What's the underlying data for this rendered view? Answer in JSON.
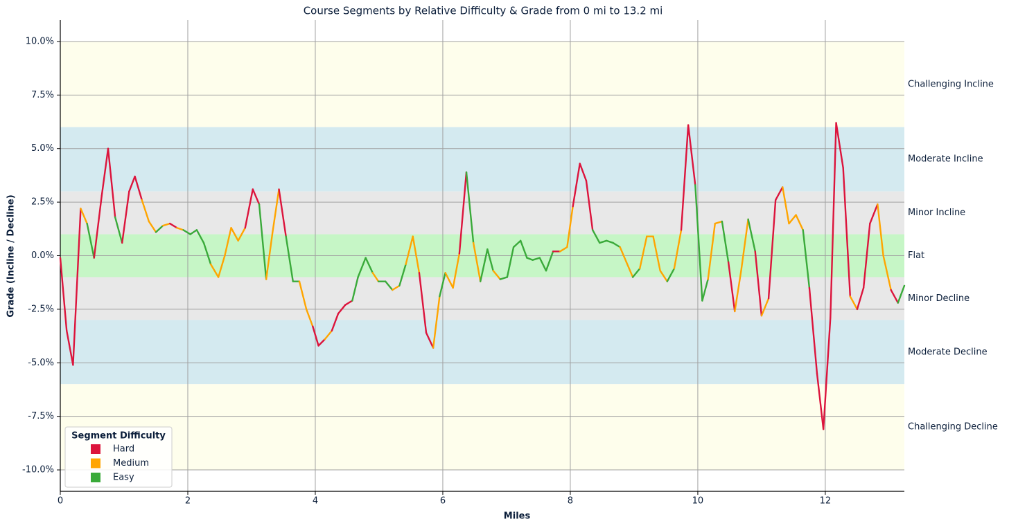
{
  "chart_data": {
    "type": "segmented_line",
    "title": "Course Segments by Relative Difficulty & Grade from 0 mi to 13.2 mi",
    "x_label": "Miles",
    "y_label": "Grade (Incline / Decline)",
    "xlim": [
      0,
      13.24
    ],
    "ylim": [
      -11,
      11
    ],
    "xticks": [
      0,
      2,
      4,
      6,
      8,
      10,
      12
    ],
    "yticks": [
      {
        "value": 10,
        "label": "10.0%"
      },
      {
        "value": 7.5,
        "label": "7.5%"
      },
      {
        "value": 5,
        "label": "5.0%"
      },
      {
        "value": 2.5,
        "label": "2.5%"
      },
      {
        "value": 0,
        "label": "0.0%"
      },
      {
        "value": -2.5,
        "label": "-2.5%"
      },
      {
        "value": -5,
        "label": "-5.0%"
      },
      {
        "value": -7.5,
        "label": "-7.5%"
      },
      {
        "value": -10,
        "label": "-10.0%"
      }
    ],
    "grid": true,
    "bands": [
      {
        "label": "Challenging Incline",
        "range": [
          6,
          10
        ],
        "color": "#fefeec"
      },
      {
        "label": "Moderate Incline",
        "range": [
          3,
          6
        ],
        "color": "#d4eaf0"
      },
      {
        "label": "Minor Incline",
        "range": [
          1,
          3
        ],
        "color": "#e8e8e8"
      },
      {
        "label": "Flat",
        "range": [
          -1,
          1
        ],
        "color": "#c6f6c6"
      },
      {
        "label": "Minor Decline",
        "range": [
          -3,
          -1
        ],
        "color": "#e8e8e8"
      },
      {
        "label": "Moderate Decline",
        "range": [
          -6,
          -3
        ],
        "color": "#d4eaf0"
      },
      {
        "label": "Challenging Decline",
        "range": [
          -10,
          -6
        ],
        "color": "#fefeec"
      }
    ],
    "legend_title": "Segment Difficulty",
    "legend_position": "lower left",
    "series": [
      {
        "name": "Hard",
        "color": "#dc143c"
      },
      {
        "name": "Medium",
        "color": "#ffa500"
      },
      {
        "name": "Easy",
        "color": "#3aaa3a"
      }
    ],
    "x": [
      0,
      0.1,
      0.2,
      0.32,
      0.42,
      0.53,
      0.65,
      0.75,
      0.86,
      0.97,
      1.08,
      1.17,
      1.28,
      1.39,
      1.5,
      1.61,
      1.72,
      1.83,
      1.93,
      2.04,
      2.14,
      2.25,
      2.36,
      2.48,
      2.58,
      2.68,
      2.79,
      2.9,
      3.02,
      3.12,
      3.23,
      3.33,
      3.43,
      3.54,
      3.65,
      3.75,
      3.86,
      3.96,
      4.05,
      4.15,
      4.26,
      4.36,
      4.47,
      4.58,
      4.67,
      4.79,
      4.9,
      4.99,
      5.1,
      5.21,
      5.32,
      5.42,
      5.53,
      5.63,
      5.74,
      5.85,
      5.95,
      6.04,
      6.16,
      6.26,
      6.37,
      6.48,
      6.59,
      6.7,
      6.79,
      6.9,
      7.01,
      7.11,
      7.22,
      7.32,
      7.41,
      7.52,
      7.62,
      7.73,
      7.84,
      7.95,
      8.04,
      8.15,
      8.25,
      8.35,
      8.46,
      8.57,
      8.67,
      8.78,
      8.88,
      8.98,
      9.09,
      9.2,
      9.3,
      9.41,
      9.52,
      9.63,
      9.74,
      9.85,
      9.96,
      10.07,
      10.16,
      10.27,
      10.38,
      10.48,
      10.58,
      10.68,
      10.79,
      10.9,
      11.0,
      11.11,
      11.22,
      11.33,
      11.43,
      11.54,
      11.65,
      11.75,
      11.87,
      11.97,
      12.08,
      12.17,
      12.28,
      12.39,
      12.5,
      12.6,
      12.7,
      12.82,
      12.91,
      13.03,
      13.14,
      13.24
    ],
    "values": [
      -0.1,
      -3.5,
      -5.1,
      2.2,
      1.5,
      -0.1,
      2.8,
      5.0,
      1.8,
      0.6,
      3.0,
      3.7,
      2.6,
      1.6,
      1.1,
      1.4,
      1.5,
      1.3,
      1.2,
      1.0,
      1.2,
      0.6,
      -0.4,
      -1.0,
      0.0,
      1.3,
      0.7,
      1.3,
      3.1,
      2.4,
      -1.1,
      1.1,
      3.1,
      0.9,
      -1.2,
      -1.2,
      -2.5,
      -3.3,
      -4.2,
      -3.9,
      -3.5,
      -2.7,
      -2.3,
      -2.1,
      -1.0,
      -0.1,
      -0.8,
      -1.2,
      -1.2,
      -1.6,
      -1.4,
      -0.4,
      0.9,
      -0.8,
      -3.6,
      -4.3,
      -1.9,
      -0.8,
      -1.5,
      0.1,
      3.9,
      0.6,
      -1.2,
      0.3,
      -0.7,
      -1.1,
      -1.0,
      0.4,
      0.7,
      -0.1,
      -0.2,
      -0.1,
      -0.7,
      0.2,
      0.2,
      0.4,
      2.3,
      4.3,
      3.5,
      1.2,
      0.6,
      0.7,
      0.6,
      0.4,
      -0.3,
      -1.0,
      -0.6,
      0.9,
      0.9,
      -0.7,
      -1.2,
      -0.6,
      1.2,
      6.1,
      3.3,
      -2.1,
      -1.1,
      1.5,
      1.6,
      -0.3,
      -2.6,
      -0.7,
      1.7,
      0.2,
      -2.8,
      -2.0,
      2.6,
      3.2,
      1.5,
      1.9,
      1.2,
      -1.5,
      -5.5,
      -8.1,
      -2.9,
      6.2,
      4.1,
      -1.9,
      -2.5,
      -1.5,
      1.5,
      2.4,
      0.0,
      -1.6,
      -2.2,
      -1.4
    ],
    "segment_series": [
      0,
      0,
      0,
      1,
      2,
      0,
      0,
      0,
      2,
      0,
      0,
      0,
      1,
      1,
      2,
      1,
      0,
      1,
      2,
      2,
      2,
      2,
      1,
      1,
      1,
      1,
      1,
      0,
      0,
      2,
      1,
      1,
      0,
      2,
      2,
      1,
      1,
      0,
      0,
      1,
      0,
      0,
      0,
      2,
      2,
      2,
      1,
      2,
      2,
      1,
      2,
      1,
      1,
      0,
      0,
      1,
      2,
      1,
      1,
      0,
      2,
      1,
      2,
      2,
      1,
      2,
      2,
      2,
      2,
      2,
      2,
      2,
      2,
      0,
      1,
      1,
      0,
      0,
      0,
      2,
      2,
      2,
      2,
      1,
      1,
      2,
      1,
      1,
      1,
      1,
      2,
      1,
      0,
      0,
      2,
      2,
      1,
      1,
      2,
      0,
      1,
      1,
      2,
      0,
      1,
      0,
      0,
      1,
      1,
      1,
      2,
      0,
      0,
      0,
      0,
      0,
      0,
      1,
      0,
      0,
      0,
      1,
      1,
      0,
      2
    ]
  }
}
